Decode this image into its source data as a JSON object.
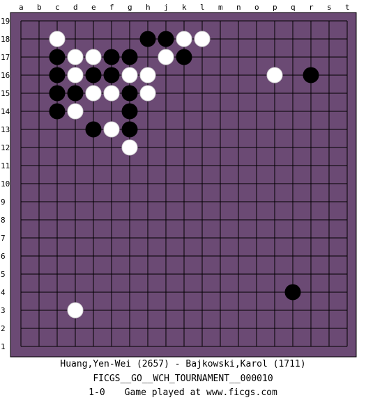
{
  "board": {
    "background_color": "#6b4a74",
    "line_color": "#000000",
    "column_labels": [
      "a",
      "b",
      "c",
      "d",
      "e",
      "f",
      "g",
      "h",
      "j",
      "k",
      "l",
      "m",
      "n",
      "o",
      "p",
      "q",
      "r",
      "s",
      "t"
    ],
    "row_labels": [
      "19",
      "18",
      "17",
      "16",
      "15",
      "14",
      "13",
      "12",
      "11",
      "10",
      "9",
      "8",
      "7",
      "6",
      "5",
      "4",
      "3",
      "2",
      "1"
    ],
    "stones": {
      "black": [
        {
          "pos": "h18"
        },
        {
          "pos": "j18"
        },
        {
          "pos": "c17"
        },
        {
          "pos": "f17"
        },
        {
          "pos": "g17"
        },
        {
          "pos": "k17"
        },
        {
          "pos": "c16"
        },
        {
          "pos": "e16"
        },
        {
          "pos": "f16"
        },
        {
          "pos": "r16"
        },
        {
          "pos": "c15"
        },
        {
          "pos": "d15"
        },
        {
          "pos": "g15"
        },
        {
          "pos": "c14"
        },
        {
          "pos": "g14"
        },
        {
          "pos": "e13"
        },
        {
          "pos": "g13"
        },
        {
          "pos": "q4"
        }
      ],
      "white": [
        {
          "pos": "c18"
        },
        {
          "pos": "k18"
        },
        {
          "pos": "l18"
        },
        {
          "pos": "d17"
        },
        {
          "pos": "e17"
        },
        {
          "pos": "j17"
        },
        {
          "pos": "d16"
        },
        {
          "pos": "g16"
        },
        {
          "pos": "h16"
        },
        {
          "pos": "p16"
        },
        {
          "pos": "e15"
        },
        {
          "pos": "f15"
        },
        {
          "pos": "h15"
        },
        {
          "pos": "d14"
        },
        {
          "pos": "f13"
        },
        {
          "pos": "g12"
        },
        {
          "pos": "d3"
        }
      ]
    }
  },
  "game": {
    "players": "Huang,Yen-Wei (2657) - Bajkowski,Karol (1711)",
    "event": "FICGS__GO__WCH_TOURNAMENT__000010",
    "result": "1-0",
    "note": "Game played at www.ficgs.com"
  }
}
